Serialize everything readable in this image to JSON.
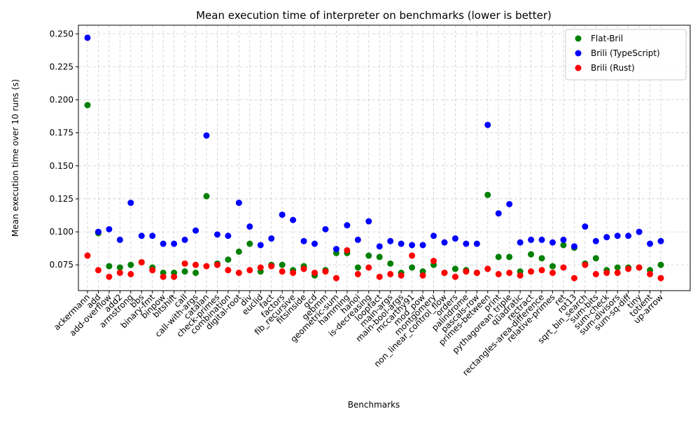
{
  "chart_data": {
    "type": "scatter",
    "title": "Mean execution time of interpreter on benchmarks (lower is better)",
    "xlabel": "Benchmarks",
    "ylabel": "Mean execution time over 10 runs (s)",
    "ylim": [
      0.0555,
      0.2565
    ],
    "yticks": [
      0.075,
      0.1,
      0.125,
      0.15,
      0.175,
      0.2,
      0.225,
      0.25
    ],
    "ytick_labels": [
      "0.075",
      "0.100",
      "0.125",
      "0.150",
      "0.175",
      "0.200",
      "0.225",
      "0.250"
    ],
    "grid": true,
    "legend_position": "top-right",
    "categories": [
      "ackermann",
      "add",
      "add-overflow",
      "add2",
      "armstrong",
      "bbs",
      "binary-fmt",
      "binpow",
      "bitshift",
      "call",
      "call-with-args",
      "catalan",
      "check-primes",
      "combination",
      "digital-root",
      "div",
      "euclid",
      "fact",
      "factors",
      "fib_recursive",
      "fitsinside",
      "gcd",
      "gebmm",
      "geometric-sum",
      "hamming",
      "hanoi",
      "is-decreasing",
      "loopfact",
      "main-args",
      "main-bool-args",
      "mccarthy91",
      "mod_pow",
      "montgomery",
      "non_linear_control_flow",
      "orders",
      "palindrome",
      "pascals-row",
      "primes-between",
      "print",
      "pythagorean_triple",
      "quadratic",
      "rectract",
      "rectangles-area-difference",
      "relative-primes",
      "ret",
      "rot13",
      "sqrt_bin_search",
      "sum-bits",
      "sum-check",
      "sum-divisors",
      "sum-sq-diff",
      "tiny",
      "totient",
      "up-arrow"
    ],
    "series": [
      {
        "name": "Flat-Bril",
        "color": "#008000",
        "values": [
          0.196,
          0.099,
          0.074,
          0.073,
          0.075,
          0.077,
          0.073,
          0.069,
          0.069,
          0.07,
          0.069,
          0.127,
          0.076,
          0.079,
          0.085,
          0.091,
          0.07,
          0.075,
          0.075,
          0.071,
          0.074,
          0.067,
          0.071,
          0.084,
          0.084,
          0.073,
          0.082,
          0.081,
          0.076,
          0.069,
          0.073,
          0.07,
          0.075,
          0.069,
          0.072,
          0.071,
          0.069,
          0.128,
          0.081,
          0.081,
          0.07,
          0.083,
          0.08,
          0.074,
          0.09,
          0.088,
          0.076,
          0.08,
          0.071,
          0.073,
          0.073,
          0.073,
          0.071,
          0.075
        ]
      },
      {
        "name": "Brili (TypeScript)",
        "color": "#0000ff",
        "values": [
          0.247,
          0.1,
          0.102,
          0.094,
          0.122,
          0.097,
          0.097,
          0.091,
          0.091,
          0.094,
          0.101,
          0.173,
          0.098,
          0.097,
          0.122,
          0.104,
          0.09,
          0.095,
          0.113,
          0.109,
          0.093,
          0.091,
          0.102,
          0.087,
          0.105,
          0.094,
          0.108,
          0.089,
          0.093,
          0.091,
          0.09,
          0.09,
          0.097,
          0.092,
          0.095,
          0.091,
          0.091,
          0.181,
          0.114,
          0.121,
          0.092,
          0.094,
          0.094,
          0.092,
          0.094,
          0.089,
          0.104,
          0.093,
          0.096,
          0.097,
          0.097,
          0.1,
          0.091,
          0.093
        ]
      },
      {
        "name": "Brili (Rust)",
        "color": "#ff0000",
        "values": [
          0.082,
          0.071,
          0.066,
          0.069,
          0.068,
          0.077,
          0.071,
          0.066,
          0.066,
          0.076,
          0.075,
          0.074,
          0.075,
          0.071,
          0.069,
          0.071,
          0.073,
          0.074,
          0.07,
          0.069,
          0.072,
          0.069,
          0.07,
          0.065,
          0.086,
          0.068,
          0.073,
          0.066,
          0.068,
          0.067,
          0.082,
          0.067,
          0.078,
          0.069,
          0.066,
          0.07,
          0.069,
          0.072,
          0.068,
          0.069,
          0.067,
          0.07,
          0.071,
          0.069,
          0.073,
          0.065,
          0.075,
          0.068,
          0.069,
          0.069,
          0.072,
          0.073,
          0.068,
          0.065
        ]
      }
    ]
  }
}
